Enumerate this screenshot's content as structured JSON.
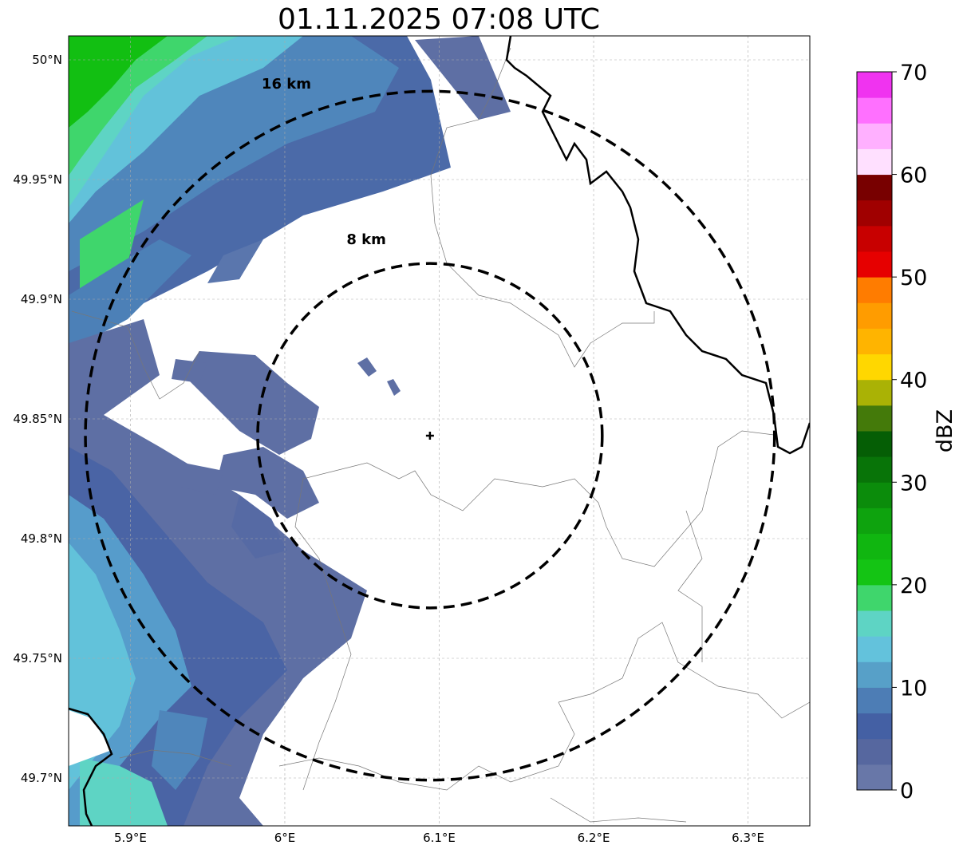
{
  "title": "01.11.2025 07:08 UTC",
  "map": {
    "lon_range": [
      5.86,
      6.34
    ],
    "lat_range": [
      49.68,
      50.01
    ],
    "lon_ticks": [
      {
        "value": 5.9,
        "label": "5.9°E"
      },
      {
        "value": 6.0,
        "label": "6°E"
      },
      {
        "value": 6.1,
        "label": "6.1°E"
      },
      {
        "value": 6.2,
        "label": "6.2°E"
      },
      {
        "value": 6.3,
        "label": "6.3°E"
      }
    ],
    "lat_ticks": [
      {
        "value": 49.7,
        "label": "49.7°N"
      },
      {
        "value": 49.75,
        "label": "49.75°N"
      },
      {
        "value": 49.8,
        "label": "49.8°N"
      },
      {
        "value": 49.85,
        "label": "49.85°N"
      },
      {
        "value": 49.9,
        "label": "49.9°N"
      },
      {
        "value": 49.95,
        "label": "49.95°N"
      },
      {
        "value": 50.0,
        "label": "50°N"
      }
    ],
    "gridlines": true,
    "radar_site": {
      "lon": 6.094,
      "lat": 49.843
    },
    "range_rings": [
      {
        "km": 8,
        "label": "8 km",
        "label_lon": 6.04,
        "label_lat": 49.923
      },
      {
        "km": 16,
        "label": "16 km",
        "label_lon": 5.985,
        "label_lat": 49.988
      }
    ],
    "echo_regions": [
      {
        "name": "northwest-band",
        "dbz_range": [
          2,
          24
        ]
      },
      {
        "name": "southwest-band",
        "dbz_range": [
          2,
          18
        ]
      },
      {
        "name": "west-central-cells",
        "dbz_range": [
          2,
          8
        ]
      },
      {
        "name": "north-small-cells",
        "dbz_range": [
          2,
          6
        ]
      }
    ]
  },
  "colorbar": {
    "label": "dBZ",
    "min": 0,
    "max": 70,
    "tick_labels": [
      "0",
      "10",
      "20",
      "30",
      "40",
      "50",
      "60",
      "70"
    ],
    "colors": [
      "#6877a8",
      "#56679f",
      "#4460a4",
      "#4d7db5",
      "#57a0c8",
      "#63c2dc",
      "#5ed4c4",
      "#3fd66c",
      "#14c414",
      "#10b610",
      "#0ea30e",
      "#0b8c0b",
      "#087408",
      "#055e05",
      "#447a0a",
      "#aab205",
      "#ffd700",
      "#ffb400",
      "#ff9c00",
      "#ff7c00",
      "#e60000",
      "#c80000",
      "#a00000",
      "#780000",
      "#ffe0ff",
      "#ffb0ff",
      "#ff70ff",
      "#f033f0"
    ]
  }
}
